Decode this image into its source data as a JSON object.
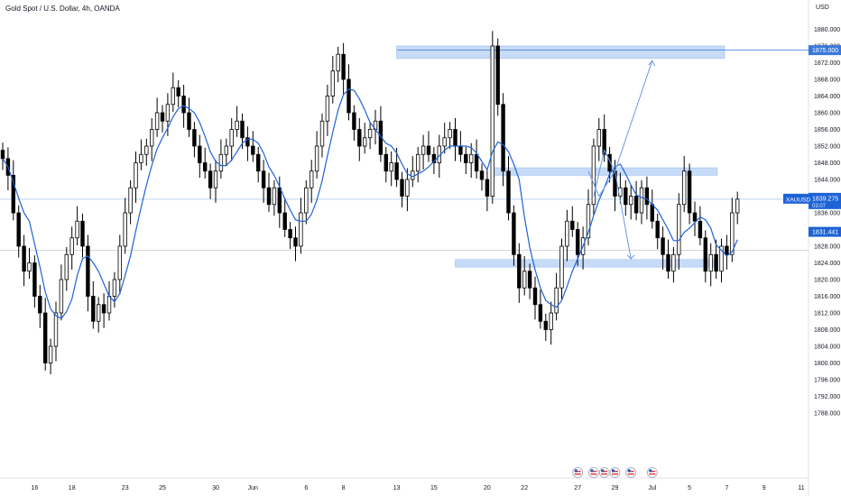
{
  "header": {
    "title": "Gold Spot / U.S. Dollar, 4h, OANDA",
    "currency": "USD"
  },
  "colors": {
    "candle": "#000000",
    "ma": "#1e63d6",
    "zone": "#c6dbf7",
    "arrow": "#6b9ae8",
    "hline": "#bfd4f2",
    "price_bg": "#1e63d6"
  },
  "chart_data": {
    "type": "candlestick",
    "title": "Gold Spot / U.S. Dollar, 4h, OANDA",
    "ylabel": "USD",
    "ylim": [
      1786,
      1884
    ],
    "y_ticks": [
      1788,
      1792,
      1796,
      1800,
      1804,
      1808,
      1812,
      1816,
      1820,
      1824,
      1828,
      1832,
      1836,
      1840,
      1844,
      1848,
      1852,
      1856,
      1860,
      1864,
      1868,
      1872,
      1876,
      1880
    ],
    "x_ticks": [
      {
        "label": "16",
        "bar": 6
      },
      {
        "label": "18",
        "bar": 13
      },
      {
        "label": "23",
        "bar": 23
      },
      {
        "label": "25",
        "bar": 30
      },
      {
        "label": "30",
        "bar": 40
      },
      {
        "label": "Jun",
        "bar": 47
      },
      {
        "label": "6",
        "bar": 57
      },
      {
        "label": "8",
        "bar": 64
      },
      {
        "label": "13",
        "bar": 74
      },
      {
        "label": "15",
        "bar": 81
      },
      {
        "label": "20",
        "bar": 91
      },
      {
        "label": "22",
        "bar": 98
      },
      {
        "label": "27",
        "bar": 108
      },
      {
        "label": "29",
        "bar": 115
      },
      {
        "label": "Jul",
        "bar": 122
      },
      {
        "label": "5",
        "bar": 129
      },
      {
        "label": "7",
        "bar": 136
      },
      {
        "label": "9",
        "bar": 143
      },
      {
        "label": "11",
        "bar": 150
      }
    ],
    "closes": [
      1849,
      1845,
      1836,
      1828,
      1822,
      1824,
      1816,
      1812,
      1800,
      1804,
      1812,
      1820,
      1826,
      1830,
      1834,
      1828,
      1816,
      1810,
      1814,
      1812,
      1816,
      1820,
      1828,
      1836,
      1842,
      1848,
      1850,
      1852,
      1856,
      1860,
      1858,
      1862,
      1866,
      1864,
      1860,
      1856,
      1852,
      1848,
      1846,
      1842,
      1846,
      1850,
      1852,
      1856,
      1858,
      1854,
      1852,
      1850,
      1846,
      1842,
      1838,
      1842,
      1836,
      1832,
      1830,
      1828,
      1836,
      1842,
      1846,
      1852,
      1858,
      1864,
      1870,
      1874,
      1868,
      1860,
      1856,
      1852,
      1854,
      1856,
      1858,
      1850,
      1846,
      1848,
      1844,
      1840,
      1844,
      1846,
      1850,
      1852,
      1850,
      1848,
      1852,
      1854,
      1856,
      1852,
      1850,
      1848,
      1850,
      1846,
      1844,
      1840,
      1876,
      1862,
      1846,
      1836,
      1826,
      1818,
      1822,
      1818,
      1814,
      1810,
      1808,
      1812,
      1818,
      1828,
      1834,
      1832,
      1826,
      1830,
      1838,
      1852,
      1856,
      1850,
      1846,
      1840,
      1842,
      1838,
      1840,
      1836,
      1842,
      1838,
      1834,
      1830,
      1826,
      1822,
      1826,
      1838,
      1846,
      1836,
      1834,
      1830,
      1822,
      1826,
      1822,
      1828,
      1826,
      1836,
      1839.275
    ],
    "current_price": 1839.275,
    "price_label": "1839.275",
    "symbol_label": "XAUUSD",
    "countdown_label": "03:07",
    "secondary_price": 1831.441,
    "secondary_label": "1831.441",
    "resistance_level": 1875.0,
    "resistance_label": "1875.000",
    "grey_level": 1827.0,
    "zones": [
      {
        "name": "top-resistance-zone",
        "from": 1873.0,
        "to": 1876.0,
        "bar_start": 74
      },
      {
        "name": "mid-resistance-zone",
        "from": 1845.0,
        "to": 1846.8,
        "bar_start": 92
      },
      {
        "name": "support-zone",
        "from": 1823.0,
        "to": 1824.8,
        "bar_start": 85
      }
    ],
    "projection_up": [
      [
        111,
        1840
      ],
      [
        113,
        1851
      ],
      [
        115,
        1846
      ],
      [
        122,
        1872.5
      ]
    ],
    "projection_down": [
      [
        110,
        1846
      ],
      [
        112,
        1840
      ],
      [
        115,
        1846
      ],
      [
        118,
        1825
      ]
    ],
    "event_icons_bars": [
      108,
      111,
      113,
      115,
      118,
      122
    ]
  }
}
